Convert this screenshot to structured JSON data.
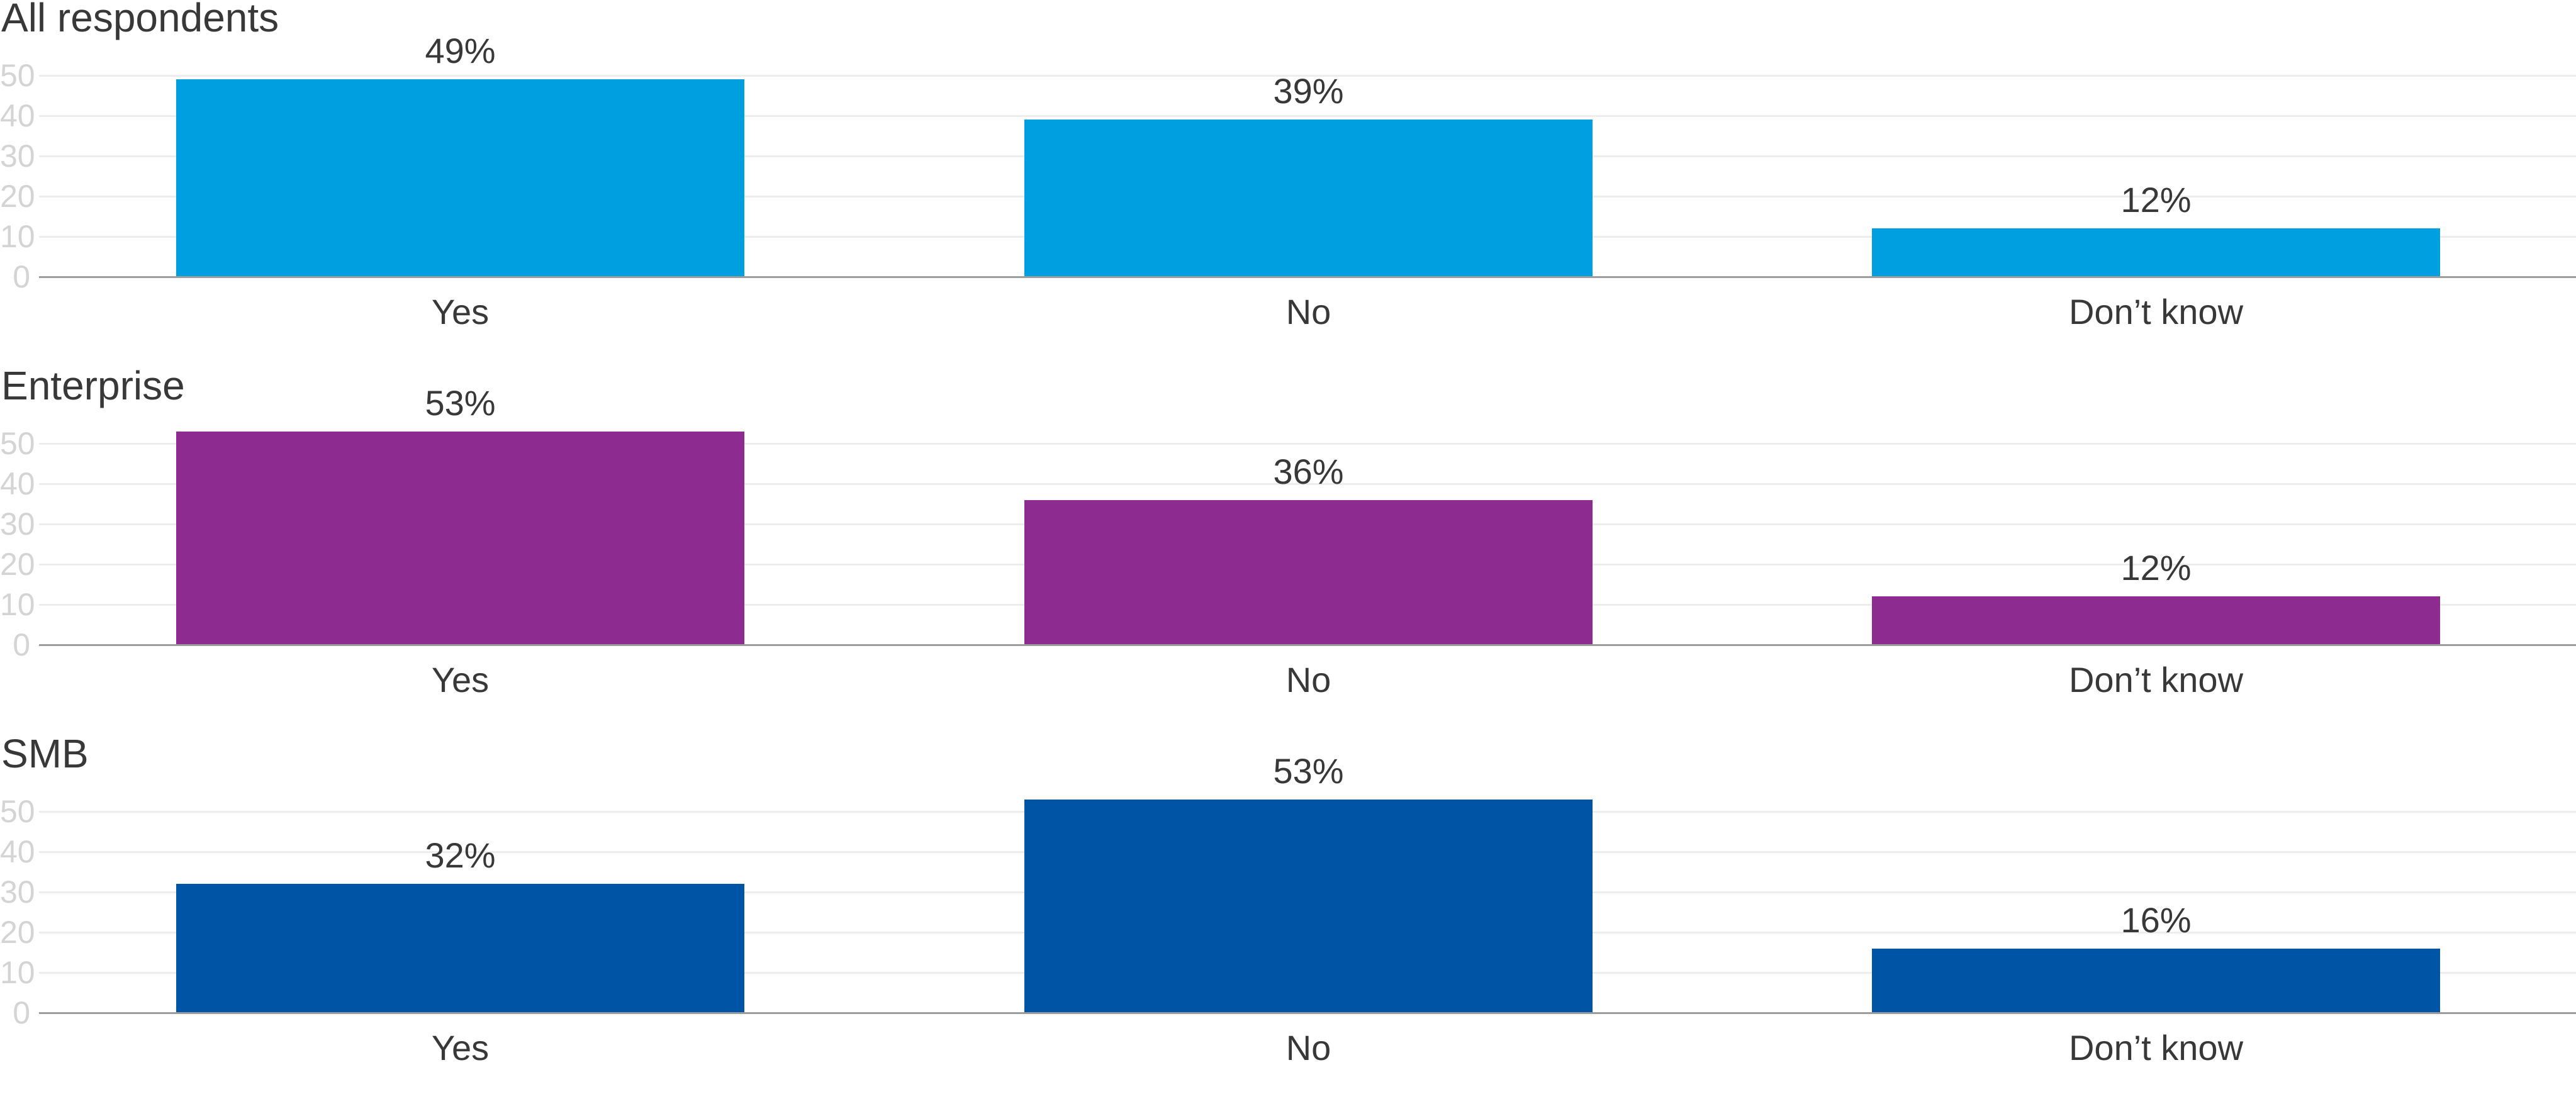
{
  "style": {
    "text_color": "#383838",
    "tick_color": "#D4D4D4",
    "gridline_color": "#EDEDED",
    "baseline_color": "#9C9C9C"
  },
  "chart_data": [
    {
      "type": "bar",
      "title": "All respondents",
      "categories": [
        "Yes",
        "No",
        "Don’t know"
      ],
      "values": [
        49,
        39,
        12
      ],
      "value_labels": [
        "49%",
        "39%",
        "12%"
      ],
      "bar_color": "#009FE0",
      "yticks": [
        0,
        10,
        20,
        30,
        40,
        50
      ],
      "ylim": [
        0,
        55
      ],
      "xlabel": "",
      "ylabel": "",
      "grid": true,
      "legend": "none",
      "unit": "percent"
    },
    {
      "type": "bar",
      "title": "Enterprise",
      "categories": [
        "Yes",
        "No",
        "Don’t know"
      ],
      "values": [
        53,
        36,
        12
      ],
      "value_labels": [
        "53%",
        "36%",
        "12%"
      ],
      "bar_color": "#8E2B91",
      "yticks": [
        0,
        10,
        20,
        30,
        40,
        50
      ],
      "ylim": [
        0,
        55
      ],
      "xlabel": "",
      "ylabel": "",
      "grid": true,
      "legend": "none",
      "unit": "percent"
    },
    {
      "type": "bar",
      "title": "SMB",
      "categories": [
        "Yes",
        "No",
        "Don’t know"
      ],
      "values": [
        32,
        53,
        16
      ],
      "value_labels": [
        "32%",
        "53%",
        "16%"
      ],
      "bar_color": "#0054A5",
      "yticks": [
        0,
        10,
        20,
        30,
        40,
        50
      ],
      "ylim": [
        0,
        55
      ],
      "xlabel": "",
      "ylabel": "",
      "grid": true,
      "legend": "none",
      "unit": "percent"
    }
  ]
}
